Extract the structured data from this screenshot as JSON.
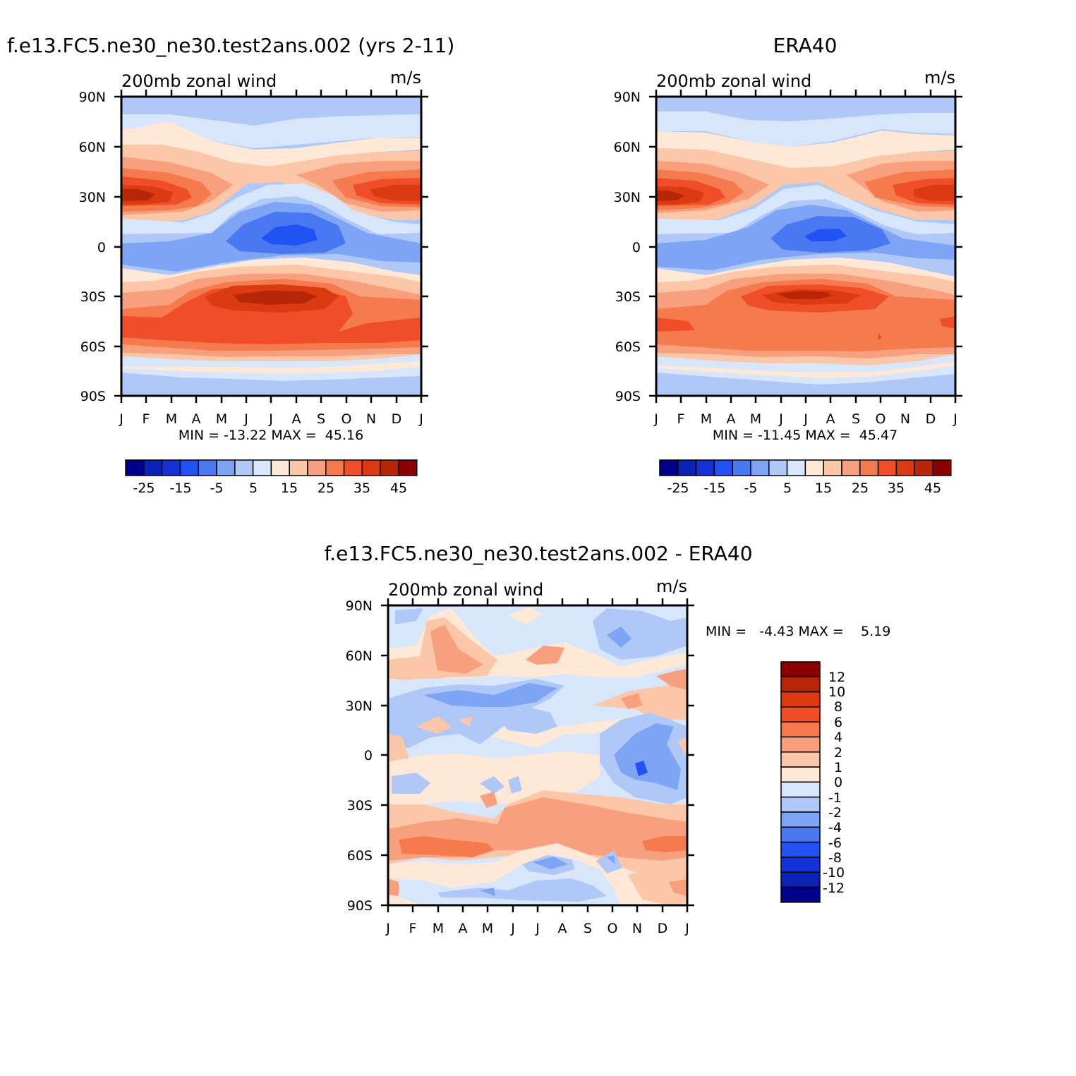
{
  "colors": {
    "model_palette": [
      "#00008b",
      "#0a22b6",
      "#1432d6",
      "#2152f4",
      "#4a78f2",
      "#7ea4f5",
      "#b0c8f8",
      "#d7e6fb",
      "#ffe8d6",
      "#fcc6a8",
      "#f8a07d",
      "#f57b4f",
      "#f04e28",
      "#dc3a10",
      "#b82608",
      "#8b0000"
    ],
    "diff_palette": [
      "#00008b",
      "#0a22b6",
      "#1432d6",
      "#2152f4",
      "#4a78f2",
      "#7ea4f5",
      "#b0c8f8",
      "#d7e6fb",
      "#ffe8d6",
      "#fcc6a8",
      "#f8a07d",
      "#f57b4f",
      "#f04e28",
      "#dc3a10",
      "#b82608",
      "#8b0000"
    ]
  },
  "panels": {
    "model": {
      "title": "f.e13.FC5.ne30_ne30.test2ans.002 (yrs 2-11)",
      "left_label": "200mb zonal wind",
      "right_label": "m/s",
      "stats": "MIN = -13.22 MAX =  45.16"
    },
    "obs": {
      "title": "ERA40",
      "left_label": "200mb zonal wind",
      "right_label": "m/s",
      "stats": "MIN = -11.45 MAX =  45.47"
    },
    "diff": {
      "title": "f.e13.FC5.ne30_ne30.test2ans.002 - ERA40",
      "left_label": "200mb zonal wind",
      "right_label": "m/s",
      "stats": "MIN =   -4.43 MAX =    5.19"
    }
  },
  "chart_data": [
    {
      "type": "heatmap",
      "title": "f.e13.FC5.ne30_ne30.test2ans.002 (yrs 2-11)",
      "variable": "200mb zonal wind",
      "units": "m/s",
      "x_tick_labels": [
        "J",
        "F",
        "M",
        "A",
        "M",
        "J",
        "J",
        "A",
        "S",
        "O",
        "N",
        "D",
        "J"
      ],
      "y_tick_labels": [
        "90N",
        "60N",
        "30N",
        "0",
        "30S",
        "60S",
        "90S"
      ],
      "y_values": [
        90,
        60,
        30,
        0,
        -30,
        -60,
        -90
      ],
      "min": -13.22,
      "max": 45.16,
      "colorbar_labels": [
        "-25",
        "-15",
        "-5",
        "5",
        "15",
        "25",
        "35",
        "45"
      ]
    },
    {
      "type": "heatmap",
      "title": "ERA40",
      "variable": "200mb zonal wind",
      "units": "m/s",
      "x_tick_labels": [
        "J",
        "F",
        "M",
        "A",
        "M",
        "J",
        "J",
        "A",
        "S",
        "O",
        "N",
        "D",
        "J"
      ],
      "y_tick_labels": [
        "90N",
        "60N",
        "30N",
        "0",
        "30S",
        "60S",
        "90S"
      ],
      "y_values": [
        90,
        60,
        30,
        0,
        -30,
        -60,
        -90
      ],
      "min": -11.45,
      "max": 45.47,
      "colorbar_labels": [
        "-25",
        "-15",
        "-5",
        "5",
        "15",
        "25",
        "35",
        "45"
      ]
    },
    {
      "type": "heatmap",
      "title": "f.e13.FC5.ne30_ne30.test2ans.002 - ERA40",
      "variable": "200mb zonal wind",
      "units": "m/s",
      "x_tick_labels": [
        "J",
        "F",
        "M",
        "A",
        "M",
        "J",
        "J",
        "A",
        "S",
        "O",
        "N",
        "D",
        "J"
      ],
      "y_tick_labels": [
        "90N",
        "60N",
        "30N",
        "0",
        "30S",
        "60S",
        "90S"
      ],
      "y_values": [
        90,
        60,
        30,
        0,
        -30,
        -60,
        -90
      ],
      "min": -4.43,
      "max": 5.19,
      "colorbar_labels": [
        "12",
        "10",
        "8",
        "6",
        "4",
        "2",
        "1",
        "0",
        "-1",
        "-2",
        "-4",
        "-6",
        "-8",
        "-10",
        "-12"
      ]
    }
  ]
}
